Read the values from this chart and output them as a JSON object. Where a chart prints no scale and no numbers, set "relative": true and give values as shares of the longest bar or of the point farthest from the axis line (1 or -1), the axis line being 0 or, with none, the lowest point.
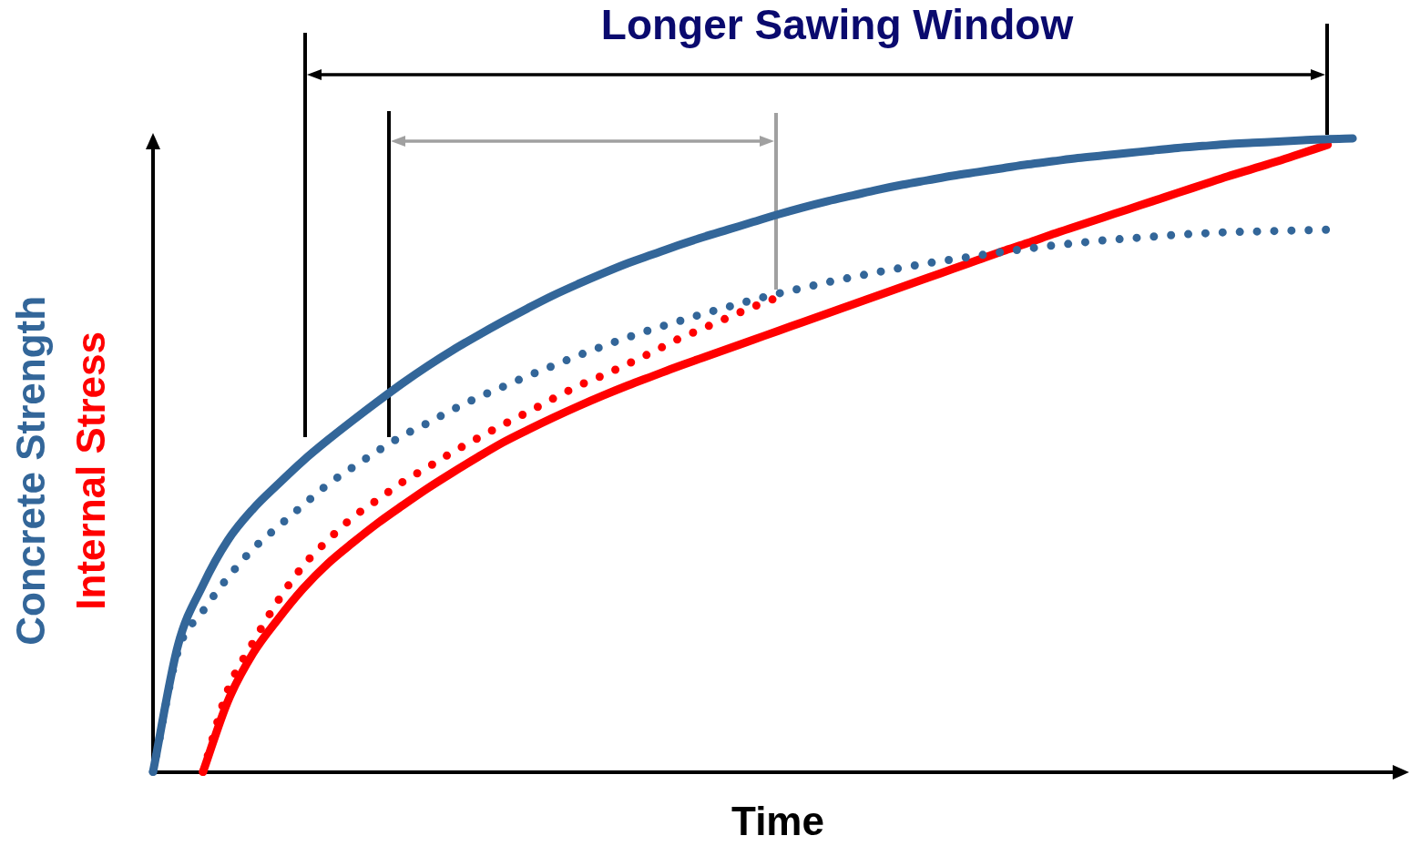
{
  "chart_data": {
    "type": "line",
    "relative": true,
    "xlabel": "Time",
    "tick_labels": false,
    "marker": "none",
    "line_style": "solid",
    "categories": [
      null,
      null,
      null,
      null,
      null,
      null,
      null,
      null,
      null,
      null,
      null,
      null,
      null,
      null,
      null,
      null,
      null,
      null,
      null,
      null,
      null,
      null,
      null,
      null,
      null,
      null,
      null,
      null,
      null,
      null,
      null,
      null,
      null,
      null,
      null,
      null,
      null,
      null,
      null,
      null,
      null,
      null,
      null,
      null,
      null,
      null,
      null,
      null,
      null,
      null,
      null
    ],
    "annotations": [
      "Longer Sawing Window"
    ],
    "series": [
      {
        "name": "Concrete Strength",
        "color": "#336699",
        "values": [
          0,
          0.2,
          0.295,
          0.366,
          0.415,
          0.454,
          0.491,
          0.524,
          0.555,
          0.585,
          0.614,
          0.641,
          0.666,
          0.689,
          0.711,
          0.732,
          0.752,
          0.77,
          0.787,
          0.803,
          0.817,
          0.831,
          0.844,
          0.856,
          0.868,
          0.88,
          0.891,
          0.901,
          0.91,
          0.919,
          0.927,
          0.934,
          0.941,
          0.947,
          0.953,
          0.959,
          0.964,
          0.969,
          0.973,
          0.977,
          0.981,
          0.985,
          0.988,
          0.991,
          0.993,
          0.995,
          0.997,
          0.999,
          1,
          null,
          null
        ]
      },
      {
        "color": "#336699",
        "line_style": "dotted",
        "values": [
          0,
          0.191,
          0.254,
          0.307,
          0.352,
          0.387,
          0.421,
          0.454,
          0.481,
          0.507,
          0.531,
          0.551,
          0.572,
          0.591,
          0.608,
          0.625,
          0.641,
          0.657,
          0.672,
          0.686,
          0.699,
          0.711,
          0.723,
          0.734,
          0.745,
          0.755,
          0.764,
          0.773,
          0.781,
          0.789,
          0.796,
          0.803,
          0.809,
          0.815,
          0.821,
          0.826,
          0.831,
          0.835,
          0.839,
          0.842,
          0.845,
          0.848,
          0.85,
          0.852,
          0.853,
          0.854,
          0.855,
          0.856,
          null,
          null,
          null
        ]
      },
      {
        "name": "Internal Stress",
        "color": "#ff0000",
        "values": [
          null,
          null,
          0,
          0.112,
          0.187,
          0.241,
          0.289,
          0.329,
          0.362,
          0.393,
          0.421,
          0.448,
          0.473,
          0.497,
          0.52,
          0.54,
          0.559,
          0.577,
          0.594,
          0.61,
          0.625,
          0.64,
          0.654,
          0.668,
          0.682,
          0.696,
          0.71,
          0.724,
          0.738,
          0.752,
          0.766,
          0.78,
          0.794,
          0.808,
          0.822,
          0.835,
          0.849,
          0.862,
          0.875,
          0.888,
          0.901,
          0.914,
          0.927,
          0.94,
          0.952,
          0.964,
          0.977,
          0.99,
          null,
          null,
          null
        ]
      },
      {
        "color": "#ff0000",
        "line_style": "dotted",
        "values": [
          null,
          null,
          0,
          0.13,
          0.204,
          0.27,
          0.325,
          0.366,
          0.402,
          0.43,
          0.458,
          0.481,
          0.505,
          0.527,
          0.548,
          0.568,
          0.589,
          0.609,
          0.626,
          0.644,
          0.663,
          0.683,
          0.7,
          0.717,
          0.734,
          0.749,
          null,
          null,
          null,
          null,
          null,
          null,
          null,
          null,
          null,
          null,
          null,
          null,
          null,
          null,
          null,
          null,
          null,
          null,
          null,
          null,
          null,
          null,
          null,
          null,
          null
        ]
      }
    ]
  }
}
